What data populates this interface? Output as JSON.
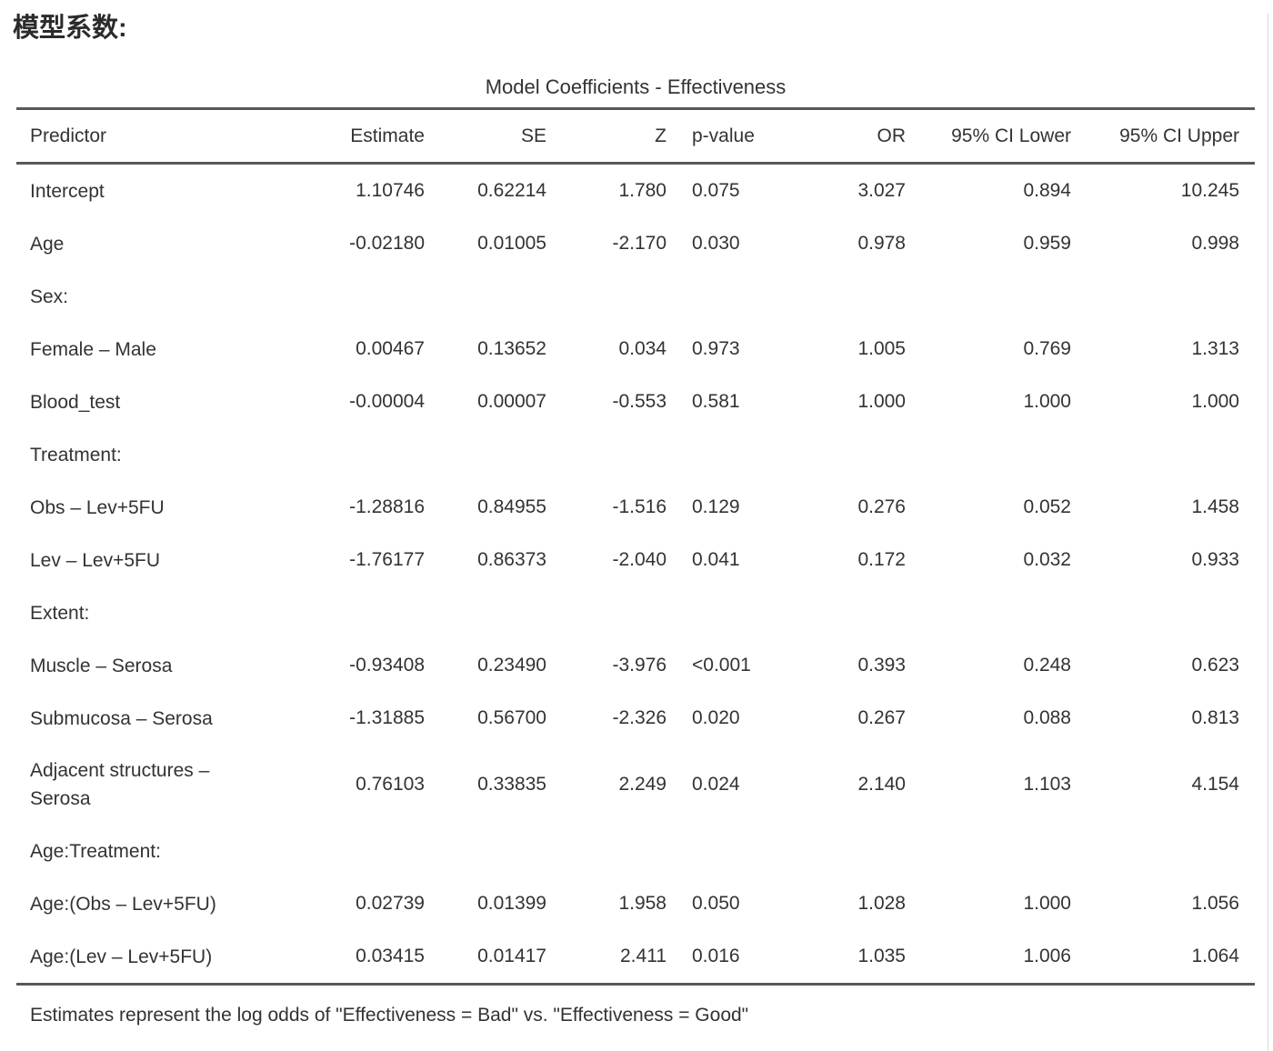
{
  "page": {
    "heading": "模型系数:",
    "rule_color": "#58585a",
    "text_color": "#333333",
    "panel_border_color": "#d9d9d9"
  },
  "table": {
    "title": "Model Coefficients - Effectiveness",
    "columns": [
      "Predictor",
      "Estimate",
      "SE",
      "Z",
      "p-value",
      "OR",
      "95% CI Lower",
      "95% CI Upper"
    ],
    "rows": [
      {
        "type": "data",
        "predictor": "Intercept",
        "estimate": "1.10746",
        "se": "0.62214",
        "z": "1.780",
        "p": "0.075",
        "or": "3.027",
        "ci_lower": "0.894",
        "ci_upper": "10.245"
      },
      {
        "type": "data",
        "predictor": "Age",
        "estimate": "-0.02180",
        "se": "0.01005",
        "z": "-2.170",
        "p": "0.030",
        "or": "0.978",
        "ci_lower": "0.959",
        "ci_upper": "0.998"
      },
      {
        "type": "section",
        "predictor": "Sex:"
      },
      {
        "type": "data",
        "predictor": "Female – Male",
        "estimate": "0.00467",
        "se": "0.13652",
        "z": "0.034",
        "p": "0.973",
        "or": "1.005",
        "ci_lower": "0.769",
        "ci_upper": "1.313"
      },
      {
        "type": "data",
        "predictor": "Blood_test",
        "estimate": "-0.00004",
        "se": "0.00007",
        "z": "-0.553",
        "p": "0.581",
        "or": "1.000",
        "ci_lower": "1.000",
        "ci_upper": "1.000"
      },
      {
        "type": "section",
        "predictor": "Treatment:"
      },
      {
        "type": "data",
        "predictor": "Obs – Lev+5FU",
        "estimate": "-1.28816",
        "se": "0.84955",
        "z": "-1.516",
        "p": "0.129",
        "or": "0.276",
        "ci_lower": "0.052",
        "ci_upper": "1.458"
      },
      {
        "type": "data",
        "predictor": "Lev – Lev+5FU",
        "estimate": "-1.76177",
        "se": "0.86373",
        "z": "-2.040",
        "p": "0.041",
        "or": "0.172",
        "ci_lower": "0.032",
        "ci_upper": "0.933"
      },
      {
        "type": "section",
        "predictor": "Extent:"
      },
      {
        "type": "data",
        "predictor": "Muscle – Serosa",
        "estimate": "-0.93408",
        "se": "0.23490",
        "z": "-3.976",
        "p": "<0.001",
        "or": "0.393",
        "ci_lower": "0.248",
        "ci_upper": "0.623"
      },
      {
        "type": "data",
        "predictor": "Submucosa – Serosa",
        "estimate": "-1.31885",
        "se": "0.56700",
        "z": "-2.326",
        "p": "0.020",
        "or": "0.267",
        "ci_lower": "0.088",
        "ci_upper": "0.813"
      },
      {
        "type": "data",
        "tall": true,
        "predictor": "Adjacent structures –\nSerosa",
        "estimate": "0.76103",
        "se": "0.33835",
        "z": "2.249",
        "p": "0.024",
        "or": "2.140",
        "ci_lower": "1.103",
        "ci_upper": "4.154"
      },
      {
        "type": "section",
        "predictor": "Age:Treatment:"
      },
      {
        "type": "data",
        "predictor": "Age:(Obs – Lev+5FU)",
        "estimate": "0.02739",
        "se": "0.01399",
        "z": "1.958",
        "p": "0.050",
        "or": "1.028",
        "ci_lower": "1.000",
        "ci_upper": "1.056"
      },
      {
        "type": "data",
        "predictor": "Age:(Lev – Lev+5FU)",
        "estimate": "0.03415",
        "se": "0.01417",
        "z": "2.411",
        "p": "0.016",
        "or": "1.035",
        "ci_lower": "1.006",
        "ci_upper": "1.064"
      }
    ],
    "footnote": "Estimates represent the log odds of \"Effectiveness = Bad\" vs. \"Effectiveness = Good\""
  }
}
